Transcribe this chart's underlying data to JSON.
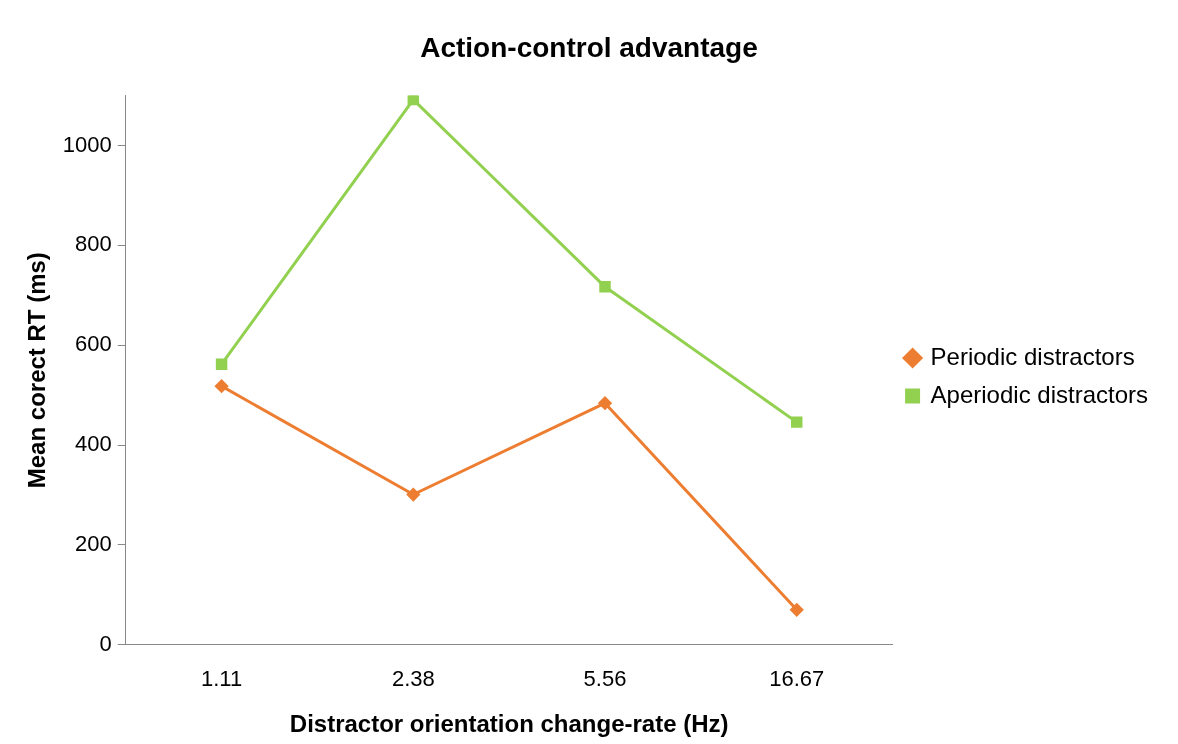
{
  "chart_data": {
    "type": "line",
    "title": "Action-control advantage",
    "xlabel": "Distractor orientation change-rate (Hz)",
    "ylabel": "Mean corect RT (ms)",
    "categories": [
      "1.11",
      "2.38",
      "5.56",
      "16.67"
    ],
    "series": [
      {
        "name": "Periodic distractors",
        "color": "#ed7d31",
        "marker": "diamond",
        "values": [
          518,
          301,
          484,
          70
        ]
      },
      {
        "name": "Aperiodic distractors",
        "color": "#92d050",
        "marker": "square",
        "values": [
          562,
          1092,
          717,
          446
        ]
      }
    ],
    "ylim": [
      0,
      1100
    ],
    "yticks": [
      0,
      200,
      400,
      600,
      800,
      1000
    ],
    "grid": false,
    "legend": "right",
    "line_style": "solid"
  }
}
